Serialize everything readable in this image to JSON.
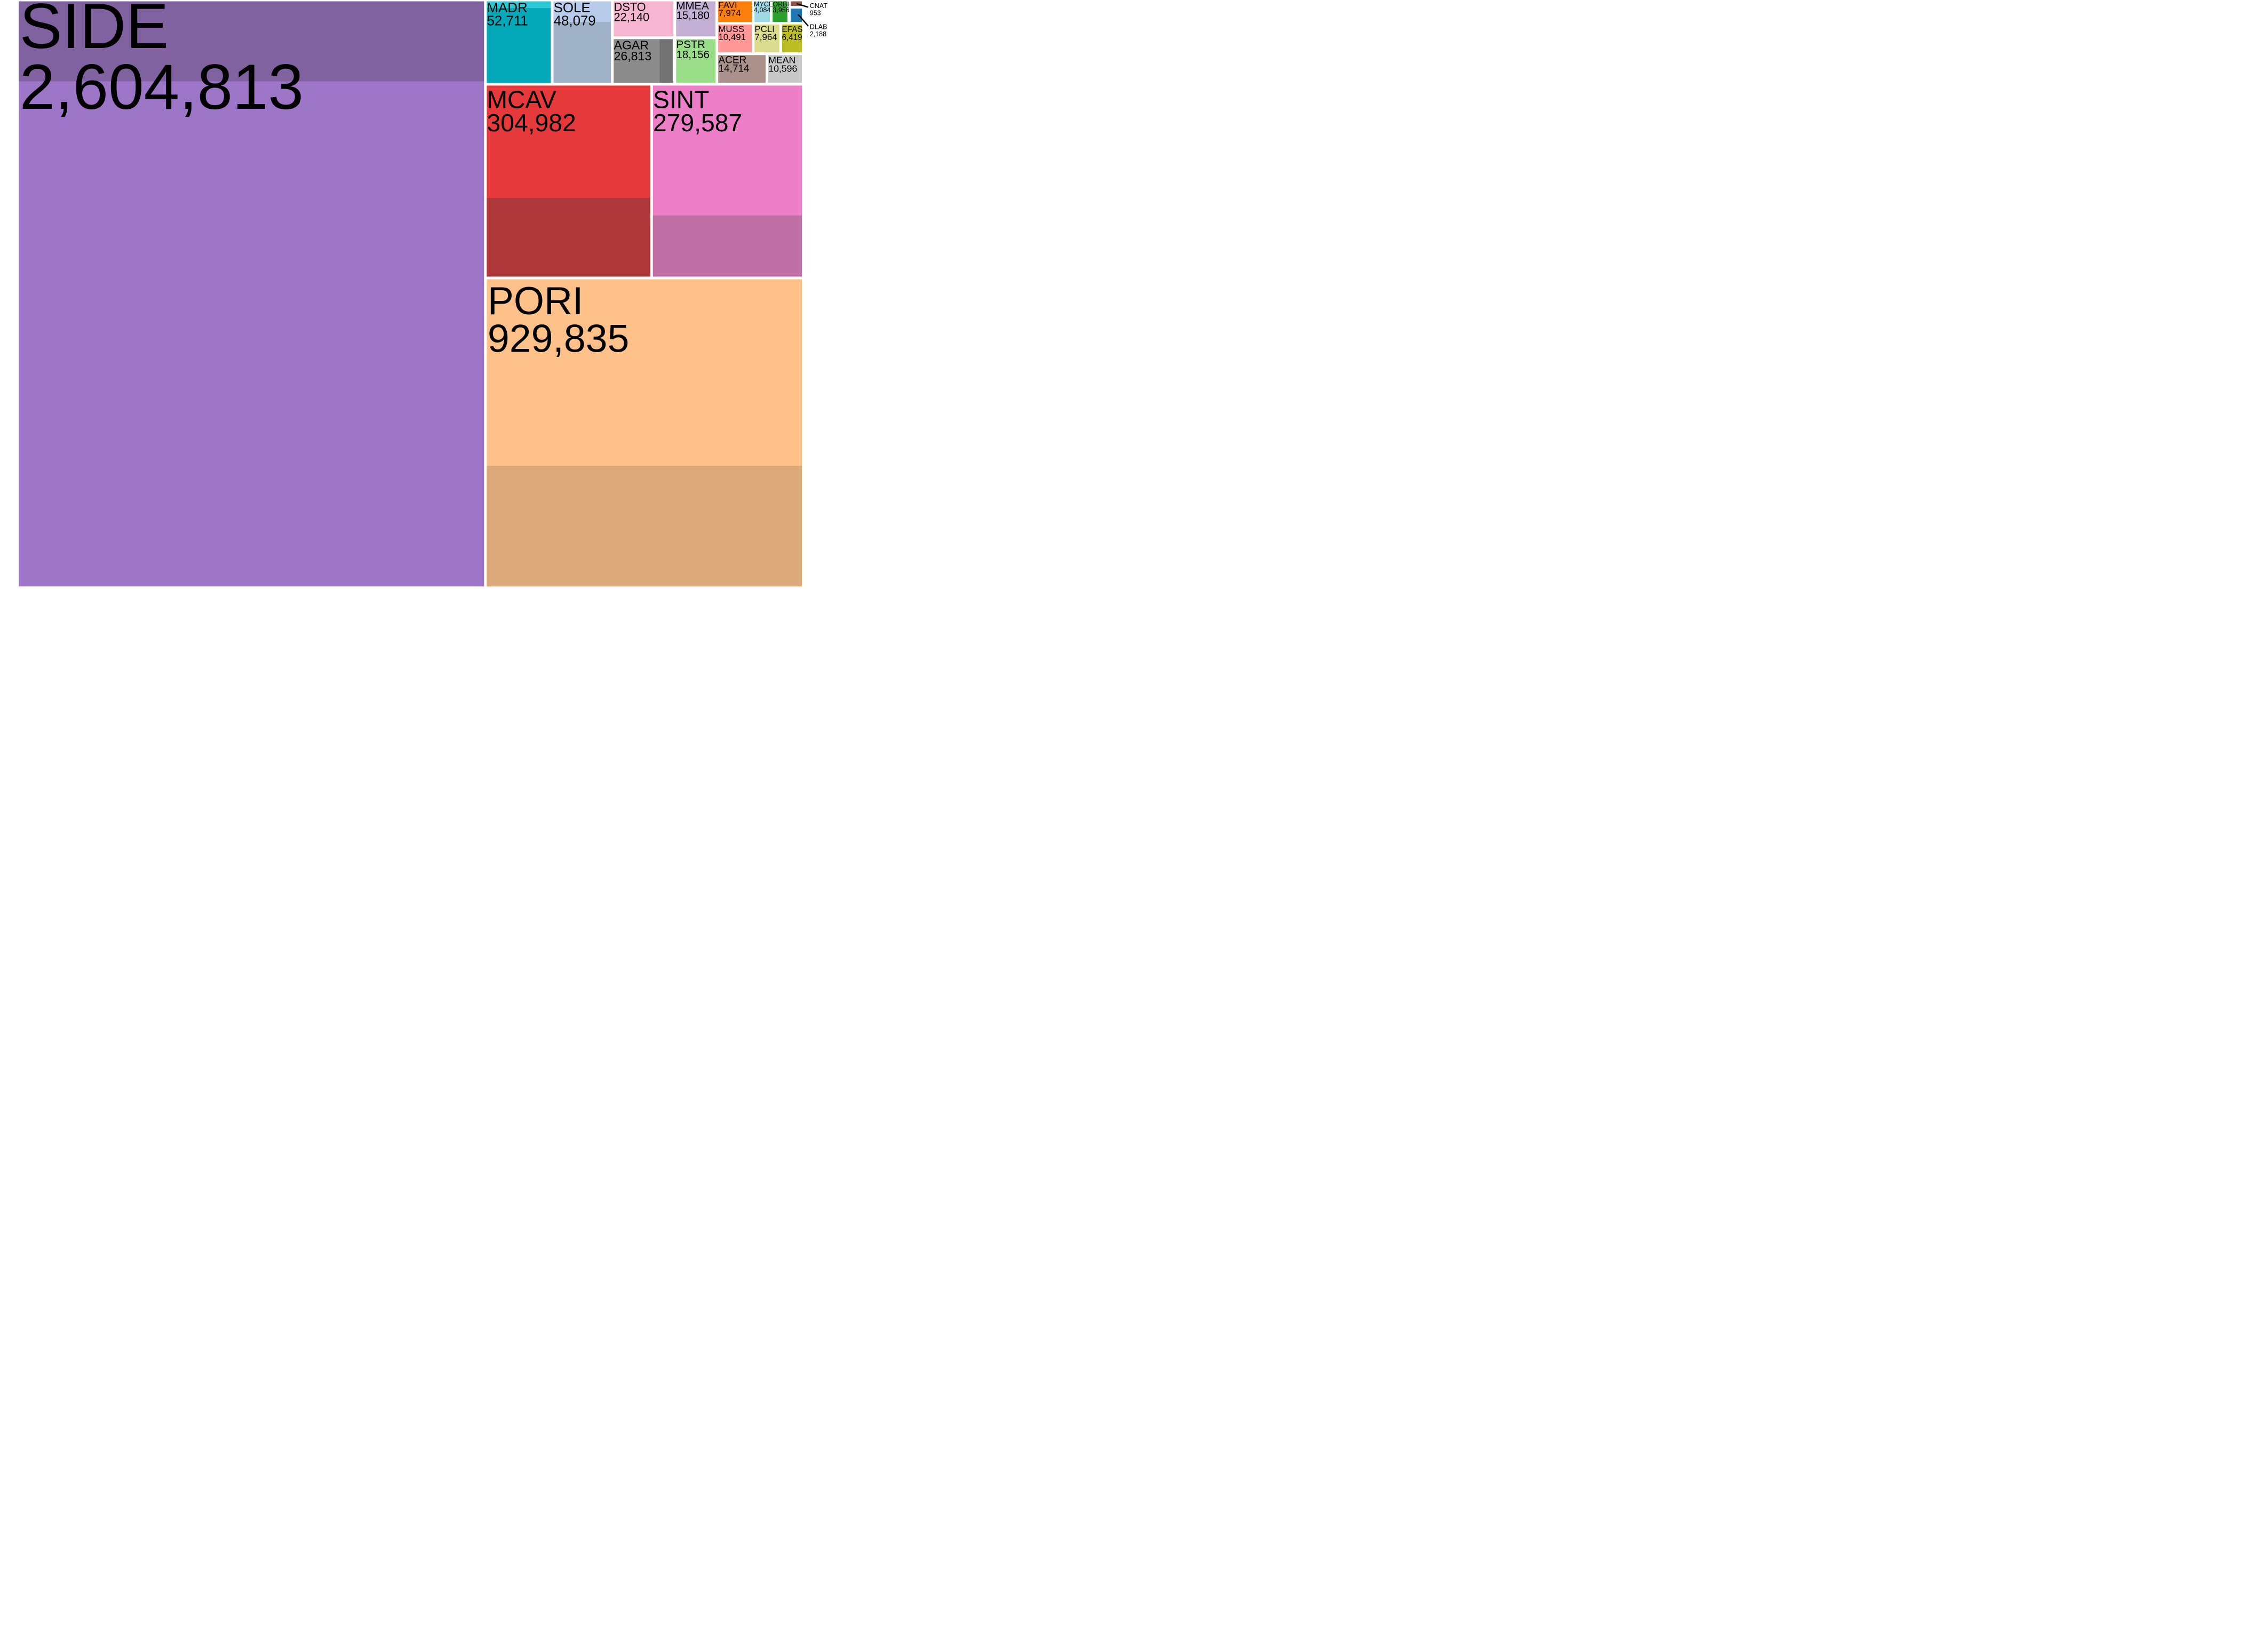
{
  "chart_data": {
    "type": "treemap",
    "title": "",
    "series": [
      {
        "name": "SIDE",
        "value_label": "2,604,813",
        "value": 2604813,
        "color": "#9E76C7",
        "inner_color": "#8162A0"
      },
      {
        "name": "PORI",
        "value_label": "929,835",
        "value": 929835,
        "color": "#FEC18A",
        "inner_color": "#DBA979"
      },
      {
        "name": "MCAV",
        "value_label": "304,982",
        "value": 304982,
        "color": "#E6393B",
        "inner_color": "#AF393A"
      },
      {
        "name": "SINT",
        "value_label": "279,587",
        "value": 279587,
        "color": "#EC7FC8",
        "inner_color": "#BF6EA6"
      },
      {
        "name": "MADR",
        "value_label": "52,711",
        "value": 52711,
        "color": "#04A9B9",
        "inner_color": "#2DC8D5"
      },
      {
        "name": "SOLE",
        "value_label": "48,079",
        "value": 48079,
        "color": "#A0B2C8",
        "inner_color": "#B7CBEA"
      },
      {
        "name": "AGAR",
        "value_label": "26,813",
        "value": 26813,
        "color": "#727272",
        "inner_color": "#8C8C8C"
      },
      {
        "name": "DSTO",
        "value_label": "22,140",
        "value": 22140,
        "color": "#F6B6D2"
      },
      {
        "name": "PSTR",
        "value_label": "18,156",
        "value": 18156,
        "color": "#9ADD88"
      },
      {
        "name": "MMEA",
        "value_label": "15,180",
        "value": 15180,
        "color": "#C5B0D5"
      },
      {
        "name": "ACER",
        "value_label": "14,714",
        "value": 14714,
        "color": "#AA918C"
      },
      {
        "name": "MEAN",
        "value_label": "10,596",
        "value": 10596,
        "color": "#C7C7C7"
      },
      {
        "name": "MUSS",
        "value_label": "10,491",
        "value": 10491,
        "color": "#FF9896"
      },
      {
        "name": "FAVI",
        "value_label": "7,974",
        "value": 7974,
        "color": "#FF7F0E"
      },
      {
        "name": "PCLI",
        "value_label": "7,964",
        "value": 7964,
        "color": "#DBDB8D"
      },
      {
        "name": "EFAS",
        "value_label": "6,419",
        "value": 6419,
        "color": "#BCBD22"
      },
      {
        "name": "MYCE",
        "value_label": "4,084",
        "value": 4084,
        "color": "#9EDAE5"
      },
      {
        "name": "ORBI",
        "value_label": "3,956",
        "value": 3956,
        "color": "#2CA02C"
      },
      {
        "name": "DLAB",
        "value_label": "2,188",
        "value": 2188,
        "color": "#1F77B4"
      },
      {
        "name": "CNAT",
        "value_label": "953",
        "value": 953,
        "color": "#8C564B"
      }
    ]
  }
}
